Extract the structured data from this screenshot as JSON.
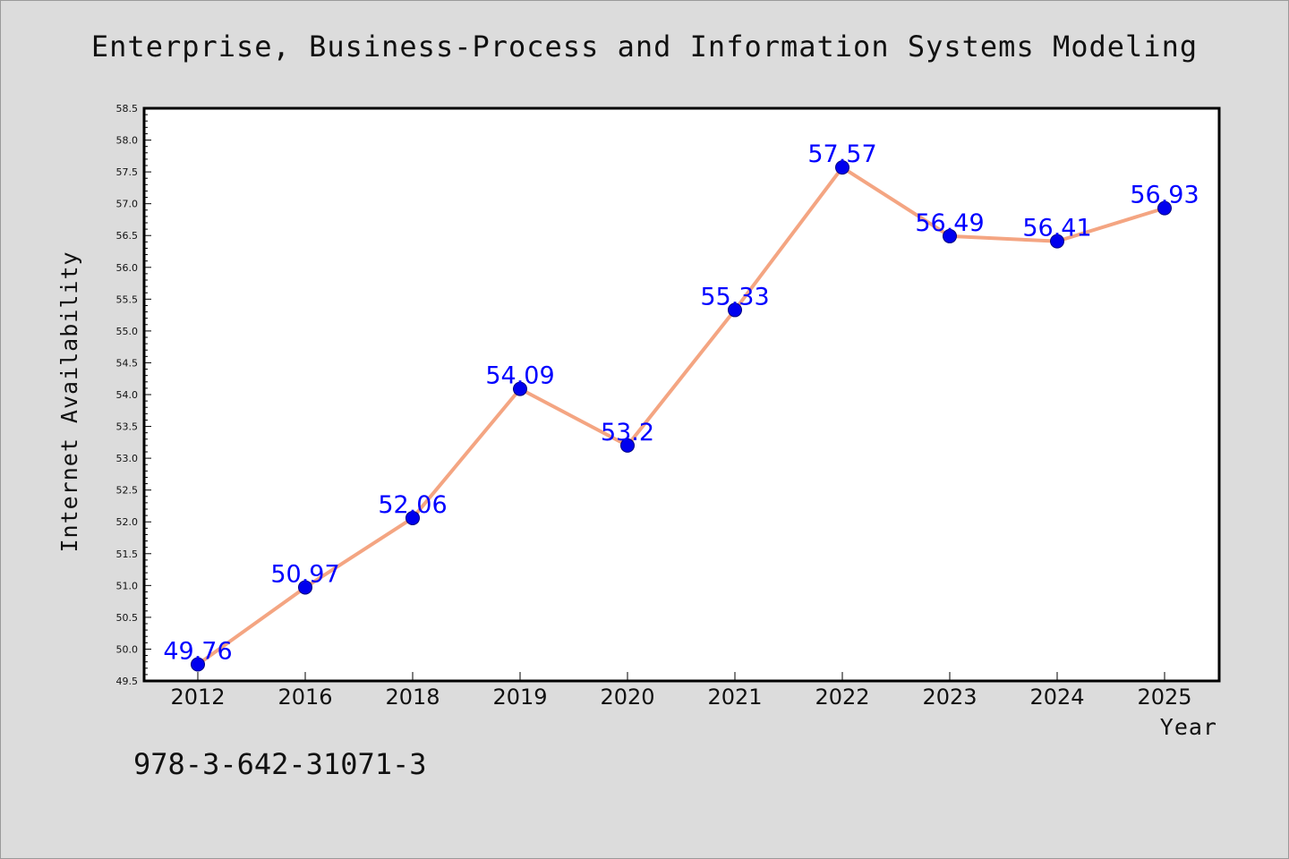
{
  "page": {
    "title": "Enterprise, Business-Process and Information Systems Modeling",
    "footer_id": "978-3-642-31071-3"
  },
  "colors": {
    "background": "#dcdcdc",
    "plot_background": "#ffffff",
    "line": "#f4a582",
    "marker": "#0000ee",
    "data_label": "#0000ff"
  },
  "chart_data": {
    "type": "line",
    "title": "Enterprise, Business-Process and Information Systems Modeling",
    "xlabel": "Year",
    "ylabel": "Internet Availability",
    "categories": [
      "2012",
      "2016",
      "2018",
      "2019",
      "2020",
      "2021",
      "2022",
      "2023",
      "2024",
      "2025"
    ],
    "series": [
      {
        "values": [
          49.76,
          50.97,
          52.06,
          54.09,
          53.2,
          55.33,
          57.57,
          56.49,
          56.41,
          56.93
        ],
        "labels": [
          "49.76",
          "50.97",
          "52.06",
          "54.09",
          "53.2",
          "55.33",
          "57.57",
          "56.49",
          "56.41",
          "56.93"
        ]
      }
    ],
    "ylim": [
      49.5,
      58.5
    ],
    "yticks": [
      "49.5",
      "50.0",
      "50.5",
      "51.0",
      "51.5",
      "52.0",
      "52.5",
      "53.0",
      "53.5",
      "54.0",
      "54.5",
      "55.0",
      "55.5",
      "56.0",
      "56.5",
      "57.0",
      "57.5",
      "58.0",
      "58.5"
    ],
    "grid": false,
    "legend": "none"
  }
}
